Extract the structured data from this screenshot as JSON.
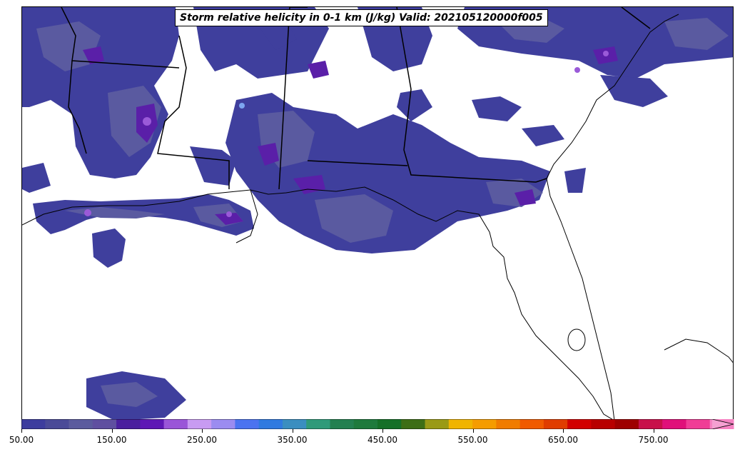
{
  "title": "Storm relative helicity in 0-1 km (J/kg) Valid: 202105120000f005",
  "colorbar": {
    "min": 50,
    "max": 830,
    "extend": "max",
    "tick_labels": [
      "50.00",
      "150.00",
      "250.00",
      "350.00",
      "450.00",
      "550.00",
      "650.00",
      "750.00"
    ],
    "tick_values": [
      50,
      150,
      250,
      350,
      450,
      550,
      650,
      750
    ],
    "colors": [
      "#3d3d9e",
      "#4a4a98",
      "#5b5b9e",
      "#5f4fa0",
      "#4a1f9e",
      "#5e17b5",
      "#9a55d8",
      "#c89bf2",
      "#9b8cf0",
      "#4b73f0",
      "#2f7ae0",
      "#3a8ec0",
      "#2f9a7a",
      "#238050",
      "#1e7a3c",
      "#157028",
      "#3d6e16",
      "#9a9a16",
      "#f0b400",
      "#f59c00",
      "#f07c00",
      "#f05a00",
      "#e03c00",
      "#d20000",
      "#b80000",
      "#9e0000",
      "#c8104a",
      "#e0107a",
      "#f03c96",
      "#f582c2"
    ],
    "extend_color": "#f5a0d2"
  },
  "map_fill_colors": {
    "low": "#3f3f9d",
    "mid": "#5a5aa0",
    "high": "#5a1fa8",
    "peak": "#9a5ad8",
    "bright": "#7da6f0"
  }
}
